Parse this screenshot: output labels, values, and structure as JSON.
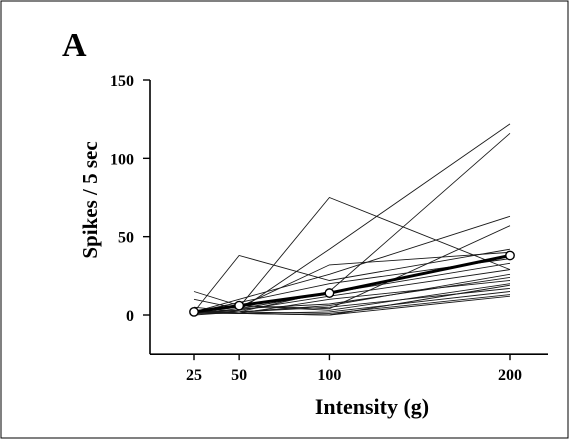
{
  "chart_data": {
    "type": "line",
    "panel_label": "A",
    "xlabel": "Intensity (g)",
    "ylabel": "Spikes / 5 sec",
    "x": [
      25,
      50,
      100,
      200
    ],
    "x_ticks": [
      "25",
      "50",
      "100",
      "200"
    ],
    "y_ticks": [
      "0",
      "50",
      "100",
      "150"
    ],
    "ylim": [
      -25,
      150
    ],
    "grid": false,
    "legend": "none",
    "colors": {
      "traces": "#1a1a1a",
      "mean": "#000000"
    },
    "series": [
      {
        "values": [
          2,
          38,
          22,
          42
        ]
      },
      {
        "values": [
          2,
          5,
          75,
          29
        ]
      },
      {
        "values": [
          2,
          3,
          42,
          122
        ]
      },
      {
        "values": [
          2,
          2,
          15,
          116
        ]
      },
      {
        "values": [
          2,
          10,
          26,
          63
        ]
      },
      {
        "values": [
          15,
          6,
          4,
          57
        ]
      },
      {
        "values": [
          2,
          5,
          32,
          40
        ]
      },
      {
        "values": [
          2,
          8,
          20,
          36
        ]
      },
      {
        "values": [
          10,
          4,
          14,
          33
        ]
      },
      {
        "values": [
          2,
          3,
          12,
          29
        ]
      },
      {
        "values": [
          5,
          2,
          6,
          26
        ]
      },
      {
        "values": [
          1,
          4,
          7,
          24
        ]
      },
      {
        "values": [
          3,
          1,
          10,
          22
        ]
      },
      {
        "values": [
          1,
          6,
          3,
          20
        ]
      },
      {
        "values": [
          2,
          1,
          0,
          19
        ]
      },
      {
        "values": [
          1,
          2,
          5,
          17
        ]
      },
      {
        "values": [
          1,
          1,
          2,
          15
        ]
      },
      {
        "values": [
          0,
          2,
          1,
          13
        ]
      },
      {
        "values": [
          2,
          1,
          0,
          12
        ]
      }
    ],
    "mean": {
      "values": [
        2,
        6,
        14,
        38
      ]
    }
  }
}
